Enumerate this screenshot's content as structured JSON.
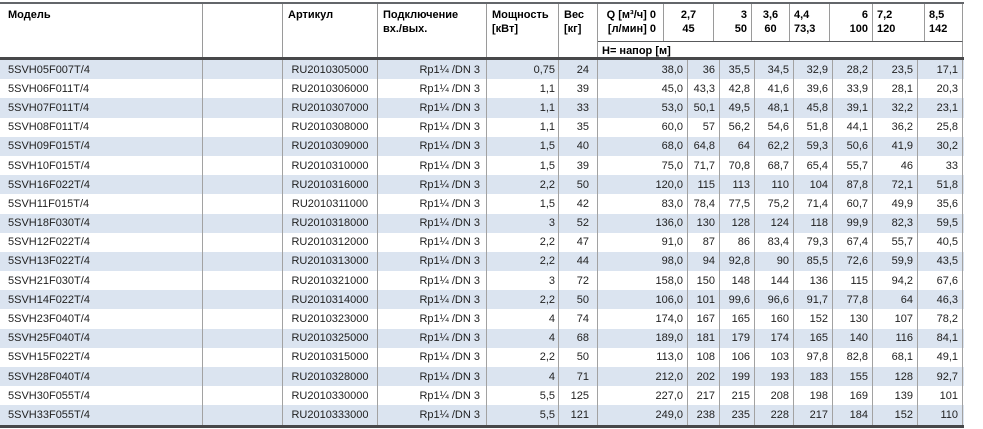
{
  "table": {
    "header": {
      "model": "Модель",
      "article": "Артикул",
      "connection_l1": "Подключение",
      "connection_l2": "вх./вых.",
      "power_l1": "Мощность",
      "power_l2": "[кВт]",
      "weight_l1": "Вес",
      "weight_l2": "[кг]",
      "q_l1": "Q [м³/ч] 0",
      "q_l2": "[л/мин] 0",
      "head_label": "Н= напор [м]",
      "flow_cols": [
        {
          "m3h": "2,7",
          "lmin": "45"
        },
        {
          "m3h": "3",
          "lmin": "50"
        },
        {
          "m3h": "3,6",
          "lmin": "60"
        },
        {
          "m3h": "4,4",
          "lmin": "73,3"
        },
        {
          "m3h": "6",
          "lmin": "100"
        },
        {
          "m3h": "7,2",
          "lmin": "120"
        },
        {
          "m3h": "8,5",
          "lmin": "142"
        }
      ]
    },
    "colors": {
      "alt_row": "#dbe4f0",
      "grid_line": "#a2a2a2",
      "thick_border": "#47484a"
    },
    "rows": [
      {
        "model": "5SVH05F007T/4",
        "article": "RU2010305000",
        "connection": "Rp1¼ /DN 3",
        "power": "0,75",
        "weight": "24",
        "q": "38,0",
        "h": [
          "36",
          "35,5",
          "34,5",
          "32,9",
          "28,2",
          "23,5",
          "17,1"
        ]
      },
      {
        "model": "5SVH06F011T/4",
        "article": "RU2010306000",
        "connection": "Rp1¼ /DN 3",
        "power": "1,1",
        "weight": "39",
        "q": "45,0",
        "h": [
          "43,3",
          "42,8",
          "41,6",
          "39,6",
          "33,9",
          "28,1",
          "20,3"
        ]
      },
      {
        "model": "5SVH07F011T/4",
        "article": "RU2010307000",
        "connection": "Rp1¼ /DN 3",
        "power": "1,1",
        "weight": "33",
        "q": "53,0",
        "h": [
          "50,1",
          "49,5",
          "48,1",
          "45,8",
          "39,1",
          "32,2",
          "23,1"
        ]
      },
      {
        "model": "5SVH08F011T/4",
        "article": "RU2010308000",
        "connection": "Rp1¼ /DN 3",
        "power": "1,1",
        "weight": "35",
        "q": "60,0",
        "h": [
          "57",
          "56,2",
          "54,6",
          "51,8",
          "44,1",
          "36,2",
          "25,8"
        ]
      },
      {
        "model": "5SVH09F015T/4",
        "article": "RU2010309000",
        "connection": "Rp1¼ /DN 3",
        "power": "1,5",
        "weight": "40",
        "q": "68,0",
        "h": [
          "64,8",
          "64",
          "62,2",
          "59,3",
          "50,6",
          "41,9",
          "30,2"
        ]
      },
      {
        "model": "5SVH10F015T/4",
        "article": "RU2010310000",
        "connection": "Rp1¼ /DN 3",
        "power": "1,5",
        "weight": "39",
        "q": "75,0",
        "h": [
          "71,7",
          "70,8",
          "68,7",
          "65,4",
          "55,7",
          "46",
          "33"
        ]
      },
      {
        "model": "5SVH16F022T/4",
        "article": "RU2010316000",
        "connection": "Rp1¼ /DN 3",
        "power": "2,2",
        "weight": "50",
        "q": "120,0",
        "h": [
          "115",
          "113",
          "110",
          "104",
          "87,8",
          "72,1",
          "51,8"
        ]
      },
      {
        "model": "5SVH11F015T/4",
        "article": "RU2010311000",
        "connection": "Rp1¼ /DN 3",
        "power": "1,5",
        "weight": "42",
        "q": "83,0",
        "h": [
          "78,4",
          "77,5",
          "75,2",
          "71,4",
          "60,7",
          "49,9",
          "35,6"
        ]
      },
      {
        "model": "5SVH18F030T/4",
        "article": "RU2010318000",
        "connection": "Rp1¼ /DN 3",
        "power": "3",
        "weight": "52",
        "q": "136,0",
        "h": [
          "130",
          "128",
          "124",
          "118",
          "99,9",
          "82,3",
          "59,5"
        ]
      },
      {
        "model": "5SVH12F022T/4",
        "article": "RU2010312000",
        "connection": "Rp1¼ /DN 3",
        "power": "2,2",
        "weight": "47",
        "q": "91,0",
        "h": [
          "87",
          "86",
          "83,4",
          "79,3",
          "67,4",
          "55,7",
          "40,5"
        ]
      },
      {
        "model": "5SVH13F022T/4",
        "article": "RU2010313000",
        "connection": "Rp1¼ /DN 3",
        "power": "2,2",
        "weight": "44",
        "q": "98,0",
        "h": [
          "94",
          "92,8",
          "90",
          "85,5",
          "72,6",
          "59,9",
          "43,5"
        ]
      },
      {
        "model": "5SVH21F030T/4",
        "article": "RU2010321000",
        "connection": "Rp1¼ /DN 3",
        "power": "3",
        "weight": "72",
        "q": "158,0",
        "h": [
          "150",
          "148",
          "144",
          "136",
          "115",
          "94,2",
          "67,6"
        ]
      },
      {
        "model": "5SVH14F022T/4",
        "article": "RU2010314000",
        "connection": "Rp1¼ /DN 3",
        "power": "2,2",
        "weight": "50",
        "q": "106,0",
        "h": [
          "101",
          "99,6",
          "96,6",
          "91,7",
          "77,8",
          "64",
          "46,3"
        ]
      },
      {
        "model": "5SVH23F040T/4",
        "article": "RU2010323000",
        "connection": "Rp1¼ /DN 3",
        "power": "4",
        "weight": "74",
        "q": "174,0",
        "h": [
          "167",
          "165",
          "160",
          "152",
          "130",
          "107",
          "78,2"
        ]
      },
      {
        "model": "5SVH25F040T/4",
        "article": "RU2010325000",
        "connection": "Rp1¼ /DN 3",
        "power": "4",
        "weight": "68",
        "q": "189,0",
        "h": [
          "181",
          "179",
          "174",
          "165",
          "140",
          "116",
          "84,1"
        ]
      },
      {
        "model": "5SVH15F022T/4",
        "article": "RU2010315000",
        "connection": "Rp1¼ /DN 3",
        "power": "2,2",
        "weight": "50",
        "q": "113,0",
        "h": [
          "108",
          "106",
          "103",
          "97,8",
          "82,8",
          "68,1",
          "49,1"
        ]
      },
      {
        "model": "5SVH28F040T/4",
        "article": "RU2010328000",
        "connection": "Rp1¼ /DN 3",
        "power": "4",
        "weight": "71",
        "q": "212,0",
        "h": [
          "202",
          "199",
          "193",
          "183",
          "155",
          "128",
          "92,7"
        ]
      },
      {
        "model": "5SVH30F055T/4",
        "article": "RU2010330000",
        "connection": "Rp1¼ /DN 3",
        "power": "5,5",
        "weight": "125",
        "q": "227,0",
        "h": [
          "217",
          "215",
          "208",
          "198",
          "169",
          "139",
          "101"
        ]
      },
      {
        "model": "5SVH33F055T/4",
        "article": "RU2010333000",
        "connection": "Rp1¼ /DN 3",
        "power": "5,5",
        "weight": "121",
        "q": "249,0",
        "h": [
          "238",
          "235",
          "228",
          "217",
          "184",
          "152",
          "110"
        ]
      }
    ]
  }
}
